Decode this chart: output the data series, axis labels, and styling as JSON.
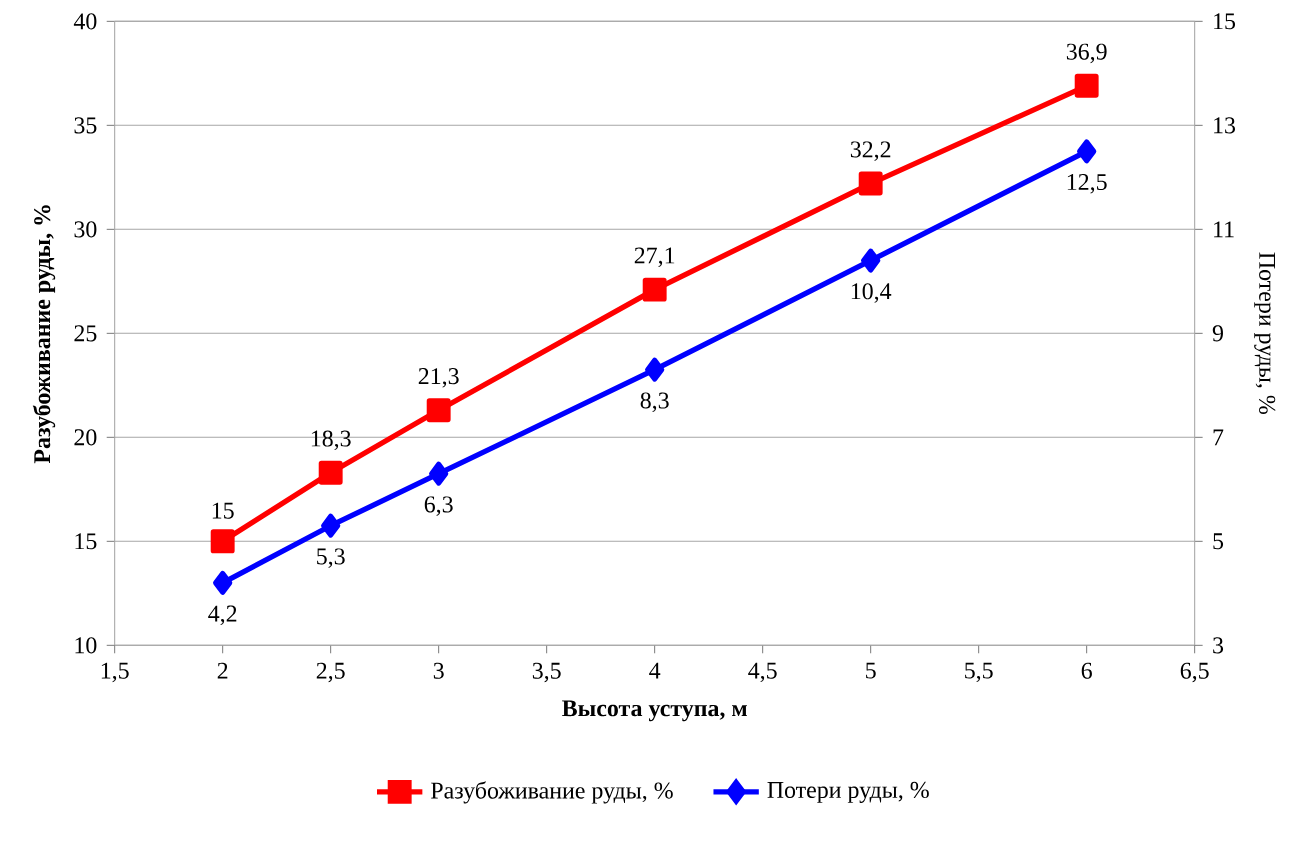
{
  "chart_data": {
    "type": "line",
    "xlabel": "Высота уступа, м",
    "ylabel": "Разубоживание руды, %",
    "y2label": "Потери руды, %",
    "x": [
      2,
      2.5,
      3,
      4,
      5,
      6
    ],
    "series": [
      {
        "name": "Разубоживание руды, %",
        "color": "#ff0000",
        "marker": "square",
        "values": [
          15,
          18.3,
          21.3,
          27.1,
          32.2,
          36.9
        ],
        "value_labels": [
          "15",
          "18,3",
          "21,3",
          "27,1",
          "32,2",
          "36,9"
        ]
      },
      {
        "name": "Потери руды, %",
        "color": "#0000ff",
        "marker": "diamond",
        "axis": "y2",
        "values": [
          4.2,
          5.3,
          6.3,
          8.3,
          10.4,
          12.5
        ],
        "value_labels": [
          "4,2",
          "5,3",
          "6,3",
          "8,3",
          "10,4",
          "12,5"
        ]
      }
    ],
    "xlim": [
      1.5,
      6.5
    ],
    "xticks": [
      {
        "value": 1.5,
        "label": "1,5"
      },
      2,
      {
        "value": 2.5,
        "label": "2,5"
      },
      3,
      {
        "value": 3.5,
        "label": "3,5"
      },
      4,
      {
        "value": 4.5,
        "label": "4,5"
      },
      5,
      {
        "value": 5.5,
        "label": "5,5"
      },
      6,
      {
        "value": 6.5,
        "label": "6,5"
      }
    ],
    "ylim": [
      10,
      40
    ],
    "yticks": [
      10,
      15,
      20,
      25,
      30,
      35,
      40
    ],
    "y2lim": [
      3,
      15
    ],
    "y2ticks": [
      3,
      5,
      7,
      9,
      11,
      13,
      15
    ],
    "grid": "y",
    "legend": "bottom",
    "line_style": "solid"
  }
}
